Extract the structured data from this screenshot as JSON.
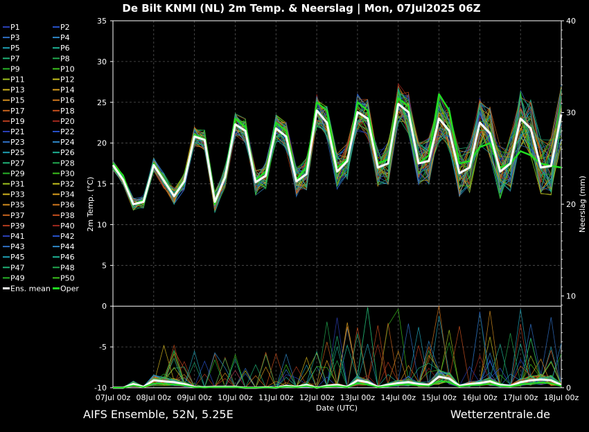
{
  "title": "De Bilt KNMI  (NL)  2m Temp. & Neerslag | Mon, 07Jul2025 06Z",
  "footer_left": "AIFS Ensemble, 52N, 5.25E",
  "footer_right": "Wetterzentrale.de",
  "chart_data": {
    "type": "line",
    "ylabel_left": "2m Temp. (°C)",
    "ylabel_right": "Neerslag (mm)",
    "xlabel": "Date (UTC)",
    "x_ticks": [
      "07Jul 00z",
      "08Jul 00z",
      "09Jul 00z",
      "10Jul 00z",
      "11Jul 00z",
      "12Jul 00z",
      "13Jul 00z",
      "14Jul 00z",
      "15Jul 00z",
      "16Jul 00z",
      "17Jul 00z",
      "18Jul 00z"
    ],
    "y_ticks_left": [
      "35",
      "30",
      "25",
      "20",
      "15",
      "10",
      "5",
      "0",
      "-5",
      "-10"
    ],
    "y_ticks_right": [
      "40",
      "30",
      "20",
      "10",
      "0"
    ],
    "ylim_left": [
      -10,
      35
    ],
    "ylim_right": [
      0,
      40
    ],
    "xlim_hours": [
      0,
      264
    ],
    "grid": true,
    "legend_placement": "left",
    "legend": [
      {
        "name": "P1",
        "color": "#2a3fb5"
      },
      {
        "name": "P2",
        "color": "#2750c8"
      },
      {
        "name": "P3",
        "color": "#2f6fc4"
      },
      {
        "name": "P4",
        "color": "#2f88c8"
      },
      {
        "name": "P5",
        "color": "#1ea0b4"
      },
      {
        "name": "P6",
        "color": "#1eb496"
      },
      {
        "name": "P7",
        "color": "#20b478"
      },
      {
        "name": "P8",
        "color": "#22aa50"
      },
      {
        "name": "P9",
        "color": "#28b428"
      },
      {
        "name": "P10",
        "color": "#3cc41e"
      },
      {
        "name": "P11",
        "color": "#a0c41e"
      },
      {
        "name": "P12",
        "color": "#c8c41e"
      },
      {
        "name": "P13",
        "color": "#d2b41e"
      },
      {
        "name": "P14",
        "color": "#dca01e"
      },
      {
        "name": "P15",
        "color": "#d28c1e"
      },
      {
        "name": "P16",
        "color": "#d2781e"
      },
      {
        "name": "P17",
        "color": "#c8641e"
      },
      {
        "name": "P18",
        "color": "#c8501e"
      },
      {
        "name": "P19",
        "color": "#b43c1e"
      },
      {
        "name": "P20",
        "color": "#a0281e"
      },
      {
        "name": "P21",
        "color": "#2a3fb5"
      },
      {
        "name": "P22",
        "color": "#2750c8"
      },
      {
        "name": "P23",
        "color": "#2f6fc4"
      },
      {
        "name": "P24",
        "color": "#2f88c8"
      },
      {
        "name": "P25",
        "color": "#1ea0b4"
      },
      {
        "name": "P26",
        "color": "#1eb496"
      },
      {
        "name": "P27",
        "color": "#20b478"
      },
      {
        "name": "P28",
        "color": "#22aa50"
      },
      {
        "name": "P29",
        "color": "#28b428"
      },
      {
        "name": "P30",
        "color": "#3cc41e"
      },
      {
        "name": "P31",
        "color": "#a0c41e"
      },
      {
        "name": "P32",
        "color": "#c8c41e"
      },
      {
        "name": "P33",
        "color": "#d2b41e"
      },
      {
        "name": "P34",
        "color": "#dca01e"
      },
      {
        "name": "P35",
        "color": "#d28c1e"
      },
      {
        "name": "P36",
        "color": "#d2781e"
      },
      {
        "name": "P37",
        "color": "#c8641e"
      },
      {
        "name": "P38",
        "color": "#c8501e"
      },
      {
        "name": "P39",
        "color": "#b43c1e"
      },
      {
        "name": "P40",
        "color": "#a0281e"
      },
      {
        "name": "P41",
        "color": "#2a3fb5"
      },
      {
        "name": "P42",
        "color": "#2750c8"
      },
      {
        "name": "P43",
        "color": "#2f6fc4"
      },
      {
        "name": "P44",
        "color": "#2f88c8"
      },
      {
        "name": "P45",
        "color": "#1ea0b4"
      },
      {
        "name": "P46",
        "color": "#1eb496"
      },
      {
        "name": "P47",
        "color": "#20b478"
      },
      {
        "name": "P48",
        "color": "#22aa50"
      },
      {
        "name": "P49",
        "color": "#28b428"
      },
      {
        "name": "P50",
        "color": "#3cc41e"
      },
      {
        "name": "Ens. mean",
        "color": "#ffffff"
      },
      {
        "name": "Oper",
        "color": "#22dd22"
      }
    ],
    "series": [
      {
        "name": "Ens. mean",
        "unit": "°C",
        "color": "#ffffff",
        "x": [
          0,
          6,
          12,
          18,
          24,
          30,
          36,
          42,
          48,
          54,
          60,
          66,
          72,
          78,
          84,
          90,
          96,
          102,
          108,
          114,
          120,
          126,
          132,
          138,
          144,
          150,
          156,
          162,
          168,
          174,
          180,
          186,
          192,
          198,
          204,
          210,
          216,
          222,
          228,
          234,
          240,
          246,
          252,
          258,
          264
        ],
        "y": [
          17.3,
          15.5,
          12.5,
          12.8,
          17.3,
          15.4,
          13.5,
          15.3,
          20.8,
          20.4,
          12.8,
          15.8,
          22.3,
          21.5,
          15.2,
          16.0,
          21.8,
          20.8,
          15.3,
          16.2,
          24.0,
          22.5,
          16.5,
          17.8,
          23.8,
          23.0,
          17.0,
          17.5,
          24.8,
          23.8,
          17.5,
          17.8,
          23.0,
          21.5,
          16.3,
          17.0,
          22.5,
          21.2,
          16.5,
          17.5,
          23.0,
          21.8,
          17.0,
          17.2,
          23.5
        ]
      },
      {
        "name": "Oper",
        "unit": "°C",
        "color": "#22dd22",
        "x": [
          0,
          6,
          12,
          18,
          24,
          30,
          36,
          42,
          48,
          54,
          60,
          66,
          72,
          78,
          84,
          90,
          96,
          102,
          108,
          114,
          120,
          126,
          132,
          138,
          144,
          150,
          156,
          162,
          168,
          174,
          180,
          186,
          192,
          198,
          204,
          210,
          216,
          222,
          228,
          234,
          240,
          246,
          252,
          258,
          264
        ],
        "y": [
          17.5,
          16.0,
          12.5,
          13.0,
          17.5,
          15.5,
          13.5,
          15.5,
          21.0,
          20.5,
          12.5,
          16.0,
          23.0,
          22.0,
          15.5,
          16.5,
          22.5,
          21.5,
          15.5,
          17.0,
          25.0,
          24.0,
          17.0,
          18.0,
          25.0,
          24.0,
          17.5,
          18.0,
          25.5,
          24.5,
          17.5,
          18.5,
          26.0,
          24.0,
          17.5,
          17.8,
          19.5,
          20.0,
          17.0,
          17.5,
          19.0,
          18.5,
          17.5,
          17.2,
          17.0
        ]
      },
      {
        "name": "Ens. mean precip",
        "unit": "mm",
        "color": "#ffffff",
        "x": [
          0,
          6,
          12,
          18,
          24,
          30,
          36,
          42,
          48,
          54,
          60,
          66,
          72,
          78,
          84,
          90,
          96,
          102,
          108,
          114,
          120,
          126,
          132,
          138,
          144,
          150,
          156,
          162,
          168,
          174,
          180,
          186,
          192,
          198,
          204,
          210,
          216,
          222,
          228,
          234,
          240,
          246,
          252,
          258,
          264
        ],
        "y": [
          0,
          0,
          0.4,
          0.1,
          0.8,
          0.7,
          0.6,
          0.4,
          0.1,
          0.05,
          0.1,
          0.1,
          0.1,
          0,
          0,
          0.05,
          0,
          0.2,
          0.1,
          0.3,
          0,
          0.2,
          0.3,
          0.1,
          0.8,
          0.6,
          0.1,
          0.3,
          0.5,
          0.6,
          0.4,
          0.3,
          1.2,
          1.0,
          0.2,
          0.4,
          0.5,
          0.7,
          0.3,
          0.2,
          0.6,
          0.8,
          0.9,
          0.8,
          0.3
        ]
      }
    ]
  }
}
